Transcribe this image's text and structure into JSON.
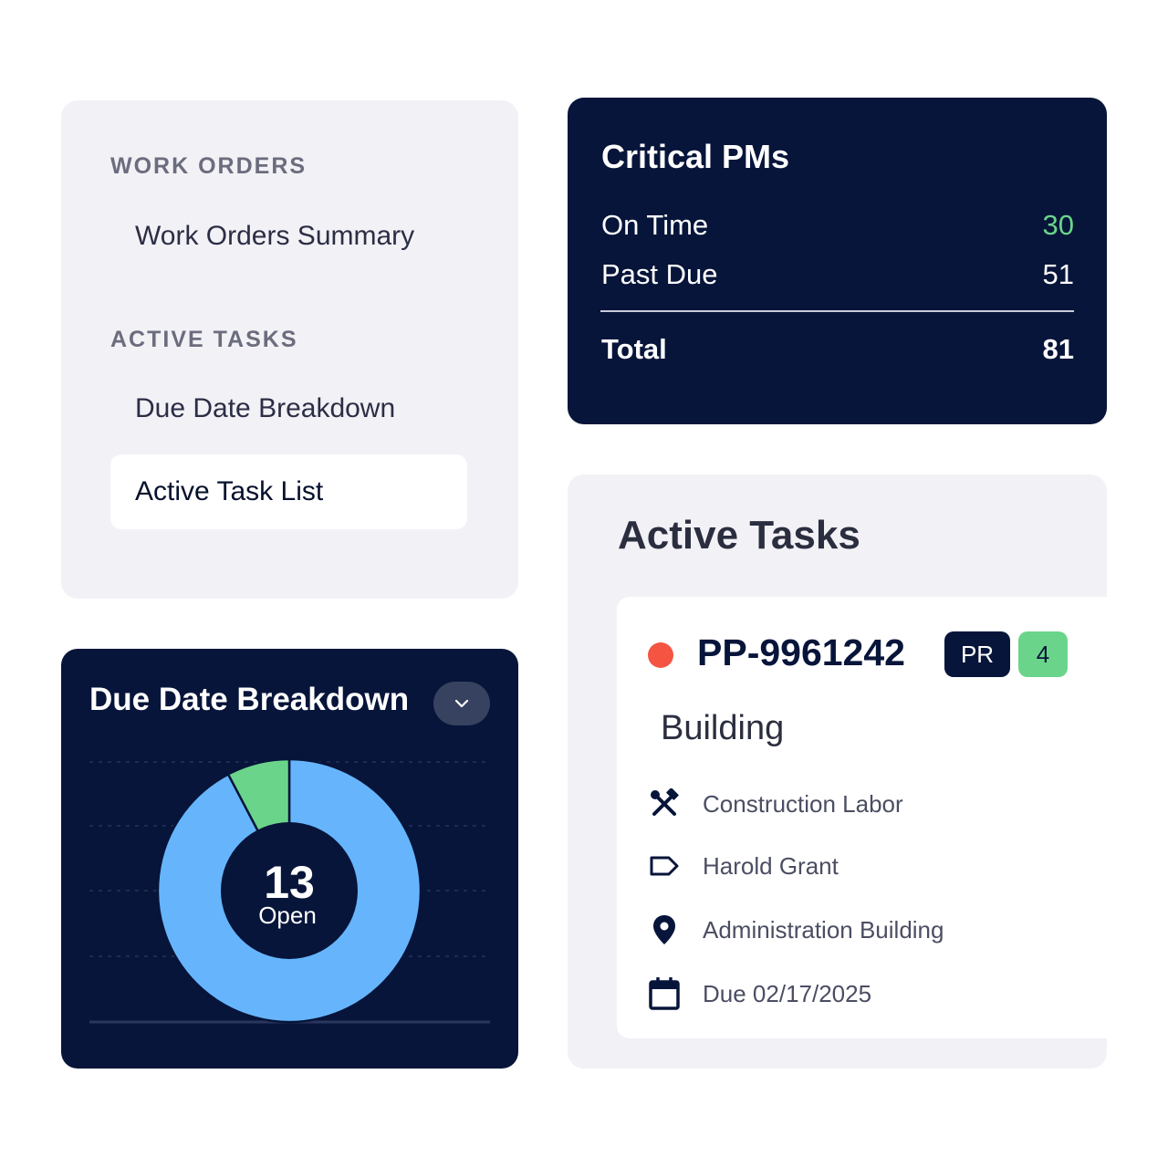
{
  "nav": {
    "sections": [
      {
        "title": "WORK ORDERS",
        "items": [
          {
            "label": "Work Orders Summary",
            "active": false
          }
        ]
      },
      {
        "title": "ACTIVE TASKS",
        "items": [
          {
            "label": "Due Date Breakdown",
            "active": false
          },
          {
            "label": "Active Task List",
            "active": true
          }
        ]
      }
    ]
  },
  "critical_pms": {
    "title": "Critical PMs",
    "rows": [
      {
        "label": "On Time",
        "value": "30"
      },
      {
        "label": "Past Due",
        "value": "51"
      }
    ],
    "total_label": "Total",
    "total_value": "81"
  },
  "due_date": {
    "title": "Due Date Breakdown",
    "dropdown_icon": "chevron-down-icon",
    "center_value": "13",
    "center_label": "Open"
  },
  "chart_data": {
    "type": "pie",
    "donut": true,
    "slices": [
      {
        "value": 12,
        "color": "#66b5fc"
      },
      {
        "value": 1,
        "color": "#6ad58a"
      }
    ],
    "center_value": 13,
    "center_label": "Open"
  },
  "active_tasks": {
    "title": "Active Tasks",
    "task": {
      "status_color": "#f55442",
      "id": "PP-9961242",
      "badge_type": "PR",
      "badge_count": "4",
      "category": "Building",
      "details": [
        {
          "icon": "tools-icon",
          "text": "Construction Labor"
        },
        {
          "icon": "tag-icon",
          "text": "Harold Grant"
        },
        {
          "icon": "location-pin-icon",
          "text": "Administration Building"
        },
        {
          "icon": "calendar-icon",
          "text": "Due 02/17/2025"
        }
      ]
    }
  },
  "colors": {
    "navy": "#07153a",
    "green": "#6ad58a",
    "blue": "#66b5fc",
    "red": "#f55442",
    "panel": "#f2f1f6"
  }
}
